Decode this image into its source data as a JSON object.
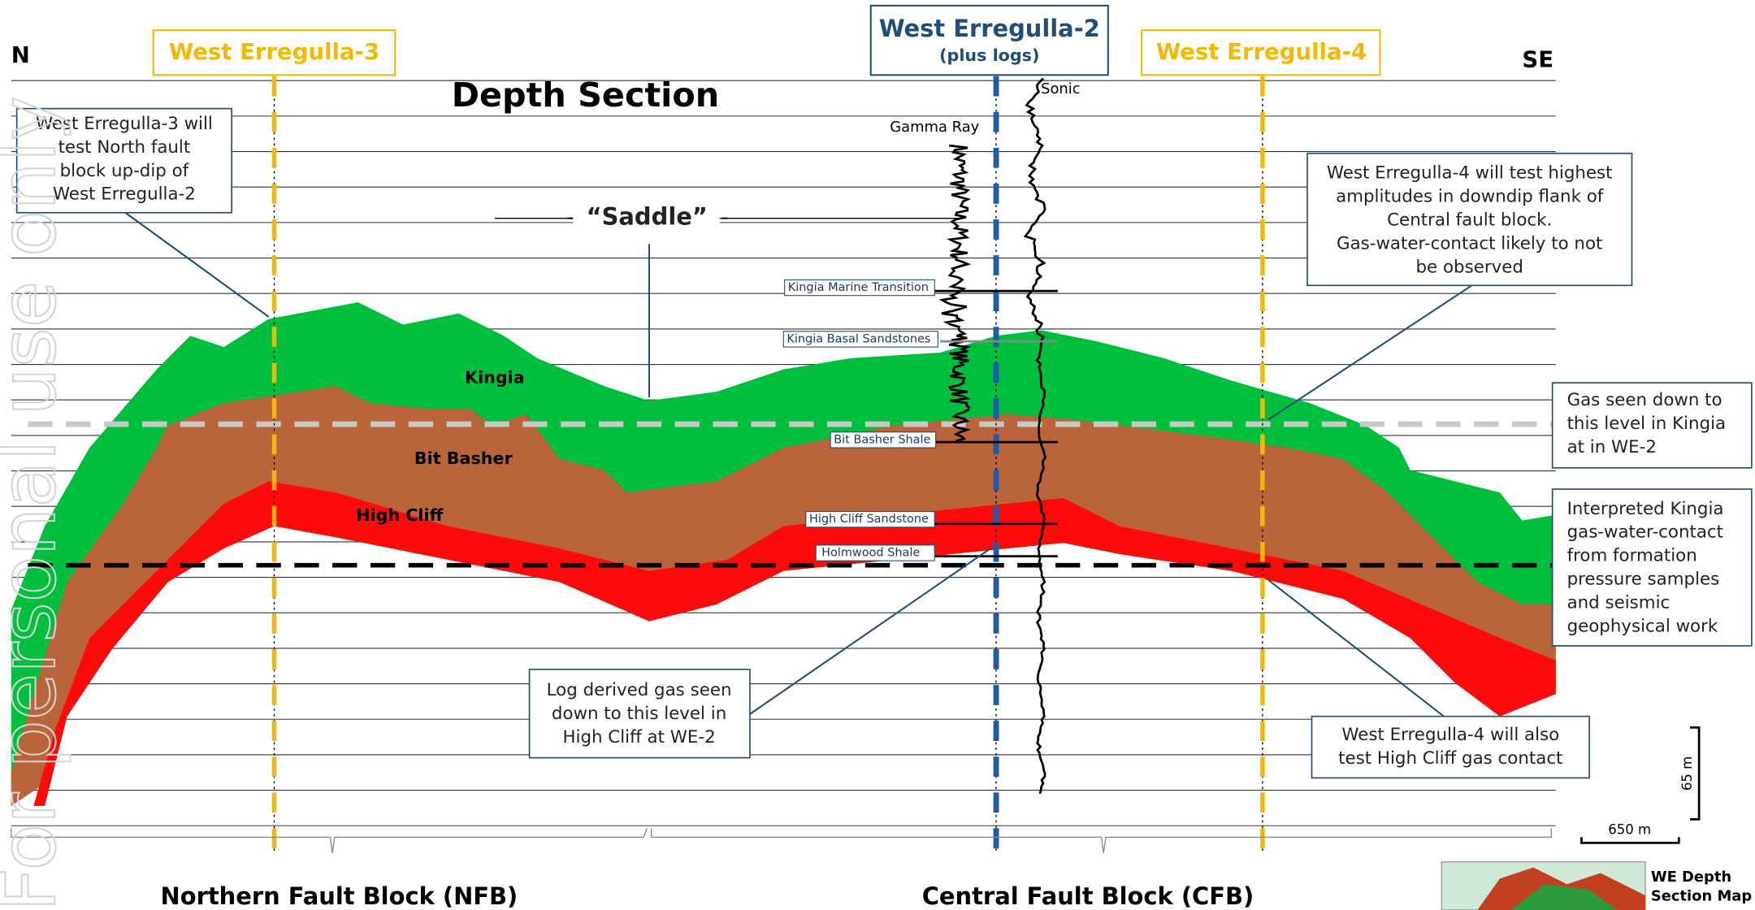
{
  "header": {
    "left": "N",
    "right": "SE",
    "title": "Depth Section"
  },
  "wells": [
    {
      "name": "West Erregulla-3"
    },
    {
      "name": "West Erregulla-2",
      "subtitle": "(plus logs)"
    },
    {
      "name": "West Erregulla-4"
    }
  ],
  "logs": {
    "gamma": "Gamma Ray",
    "sonic": "Sonic"
  },
  "formations": [
    "Kingia",
    "Bit Basher",
    "High Cliff"
  ],
  "horizons": [
    "Kingia Marine Transition",
    "Kingia Basal Sandstones",
    "Bit Basher Shale",
    "High Cliff Sandstone",
    "Holmwood Shale"
  ],
  "annotations": [
    {
      "lines": [
        "West Erregulla-3 will",
        "test North fault",
        "block up-dip of",
        "West Erregulla-2"
      ]
    },
    {
      "lines": [
        "“Saddle”"
      ]
    },
    {
      "lines": [
        "West Erregulla-4 will test highest",
        "amplitudes in downdip flank of",
        "Central fault block.",
        "Gas-water-contact likely to not",
        "be observed"
      ]
    },
    {
      "lines": [
        "Gas seen down to",
        "this level in Kingia",
        "at in WE-2"
      ]
    },
    {
      "lines": [
        "Interpreted Kingia",
        "gas-water-contact",
        "from formation",
        "pressure samples",
        "and seismic",
        "geophysical work"
      ]
    },
    {
      "lines": [
        "Log derived gas seen",
        "down to this level in",
        "High Cliff at WE-2"
      ]
    },
    {
      "lines": [
        "West Erregulla-4 will also",
        "test High Cliff gas contact"
      ]
    }
  ],
  "fault_blocks": [
    "Northern Fault Block (NFB)",
    "Central Fault Block (CFB)"
  ],
  "scale": {
    "vertical": "65 m",
    "horizontal": "650 m"
  },
  "map_label": [
    "WE Depth",
    "Section Map"
  ],
  "watermark": "For personal use only"
}
